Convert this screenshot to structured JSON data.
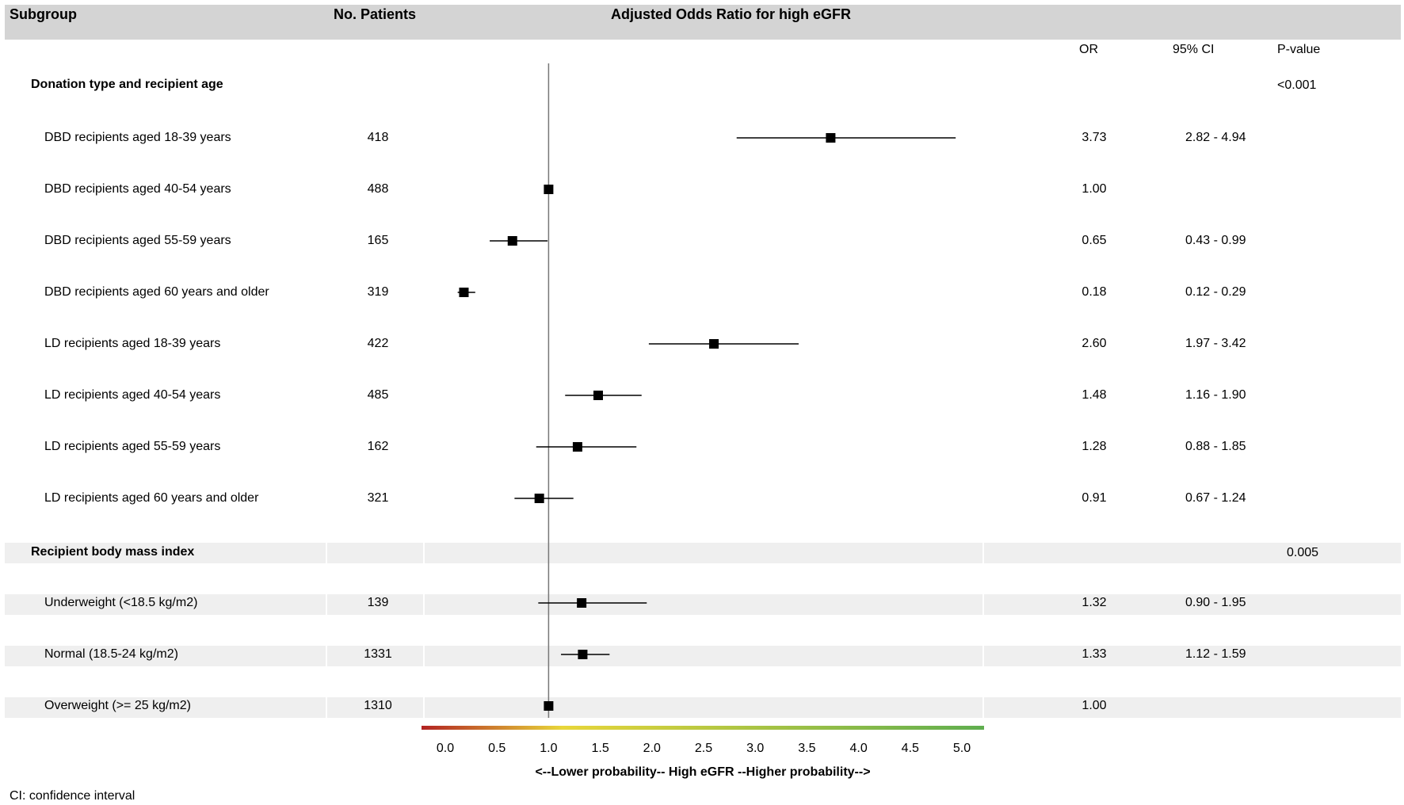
{
  "header": {
    "subgroup": "Subgroup",
    "patients": "No. Patients",
    "title": "Adjusted Odds Ratio for high eGFR"
  },
  "columns": {
    "or": "OR",
    "ci": "95% CI",
    "p": "P-value"
  },
  "sections": [
    {
      "label": "Donation type and recipient age",
      "p": "<0.001"
    },
    {
      "label": "Recipient body mass index",
      "p": "0.005"
    }
  ],
  "rows": [
    {
      "label": "DBD recipients aged 18-39 years",
      "n": "418",
      "or_text": "3.73",
      "ci_text": "2.82 - 4.94"
    },
    {
      "label": "DBD recipients aged 40-54 years",
      "n": "488",
      "or_text": "1.00",
      "ci_text": ""
    },
    {
      "label": "DBD recipients aged 55-59 years",
      "n": "165",
      "or_text": "0.65",
      "ci_text": "0.43 - 0.99"
    },
    {
      "label": "DBD recipients aged 60 years and older",
      "n": "319",
      "or_text": "0.18",
      "ci_text": "0.12 - 0.29"
    },
    {
      "label": "LD recipients aged 18-39 years",
      "n": "422",
      "or_text": "2.60",
      "ci_text": "1.97 - 3.42"
    },
    {
      "label": "LD recipients aged 40-54 years",
      "n": "485",
      "or_text": "1.48",
      "ci_text": "1.16 - 1.90"
    },
    {
      "label": "LD recipients aged 55-59 years",
      "n": "162",
      "or_text": "1.28",
      "ci_text": "0.88 - 1.85"
    },
    {
      "label": "LD recipients aged 60 years and older",
      "n": "321",
      "or_text": "0.91",
      "ci_text": "0.67 - 1.24"
    },
    {
      "label": "Underweight (<18.5 kg/m2)",
      "n": "139",
      "or_text": "1.32",
      "ci_text": "0.90 - 1.95"
    },
    {
      "label": "Normal (18.5-24 kg/m2)",
      "n": "1331",
      "or_text": "1.33",
      "ci_text": "1.12 - 1.59"
    },
    {
      "label": "Overweight (>= 25 kg/m2)",
      "n": "1310",
      "or_text": "1.00",
      "ci_text": ""
    }
  ],
  "footnote": "CI: confidence interval",
  "chart_data": {
    "type": "scatter",
    "subtype": "forest",
    "title": "Adjusted Odds Ratio for high eGFR",
    "xlabel": "<--Lower probability--  High eGFR  --Higher probability-->",
    "xlim": [
      -0.25,
      5.2
    ],
    "x_ticks": [
      "0.0",
      "0.5",
      "1.0",
      "1.5",
      "2.0",
      "2.5",
      "3.0",
      "3.5",
      "4.0",
      "4.5",
      "5.0"
    ],
    "reference_line": 1.0,
    "axis_gradient": [
      "#b22222",
      "#e8d63a",
      "#5fae4f"
    ],
    "categories": [
      "DBD recipients aged 18-39 years",
      "DBD recipients aged 40-54 years",
      "DBD recipients aged 55-59 years",
      "DBD recipients aged 60 years and older",
      "LD recipients aged 18-39 years",
      "LD recipients aged 40-54 years",
      "LD recipients aged 55-59 years",
      "LD recipients aged 60 years and older",
      "Underweight (<18.5 kg/m2)",
      "Normal (18.5-24 kg/m2)",
      "Overweight (>= 25 kg/m2)"
    ],
    "or": [
      3.73,
      1.0,
      0.65,
      0.18,
      2.6,
      1.48,
      1.28,
      0.91,
      1.32,
      1.33,
      1.0
    ],
    "ci_low": [
      2.82,
      null,
      0.43,
      0.12,
      1.97,
      1.16,
      0.88,
      0.67,
      0.9,
      1.12,
      null
    ],
    "ci_high": [
      4.94,
      null,
      0.99,
      0.29,
      3.42,
      1.9,
      1.85,
      1.24,
      1.95,
      1.59,
      null
    ]
  }
}
